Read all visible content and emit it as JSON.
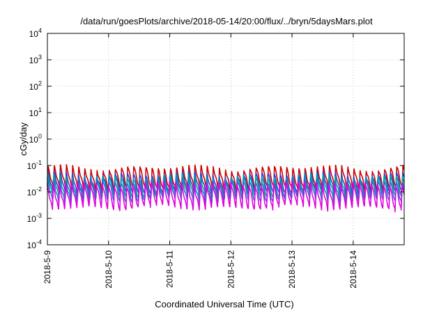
{
  "chart_data": {
    "type": "line",
    "title": "/data/run/goesPlots/archive/2018-05-14/20:00/flux/../bryn/5daysMars.plot",
    "xlabel": "Coordinated Universal Time (UTC)",
    "ylabel": "cGy/day",
    "y_scale": "log",
    "ylim": [
      0.0001,
      10000
    ],
    "y_ticks": [
      {
        "value": 0.0001,
        "base": "10",
        "exp": "-4"
      },
      {
        "value": 0.001,
        "base": "10",
        "exp": "-3"
      },
      {
        "value": 0.01,
        "base": "10",
        "exp": "-2"
      },
      {
        "value": 0.1,
        "base": "10",
        "exp": "-1"
      },
      {
        "value": 1,
        "base": "10",
        "exp": "0"
      },
      {
        "value": 10,
        "base": "10",
        "exp": "1"
      },
      {
        "value": 100,
        "base": "10",
        "exp": "2"
      },
      {
        "value": 1000,
        "base": "10",
        "exp": "3"
      },
      {
        "value": 10000,
        "base": "10",
        "exp": "4"
      }
    ],
    "x_range": [
      "2018-05-09T00:00",
      "2018-05-14T20:00"
    ],
    "x_ticks": [
      {
        "value": "2018-05-09T00:00",
        "label": "2018-5-9"
      },
      {
        "value": "2018-05-10T00:00",
        "label": "2018-5-10"
      },
      {
        "value": "2018-05-11T00:00",
        "label": "2018-5-11"
      },
      {
        "value": "2018-05-12T00:00",
        "label": "2018-5-12"
      },
      {
        "value": "2018-05-13T00:00",
        "label": "2018-5-13"
      },
      {
        "value": "2018-05-14T00:00",
        "label": "2018-5-14"
      }
    ],
    "grid": true,
    "series_pattern": {
      "period_hours": 2.4,
      "peak_values": [
        0.085,
        0.05,
        0.04,
        0.03,
        0.022
      ],
      "trough_values": [
        0.012,
        0.008,
        0.006,
        0.0045,
        0.0025
      ]
    },
    "series": [
      {
        "color": "#cc0000"
      },
      {
        "color": "#3a3acc"
      },
      {
        "color": "#00a0a0"
      },
      {
        "color": "#1f78d1"
      },
      {
        "color": "#e000e0"
      }
    ]
  }
}
